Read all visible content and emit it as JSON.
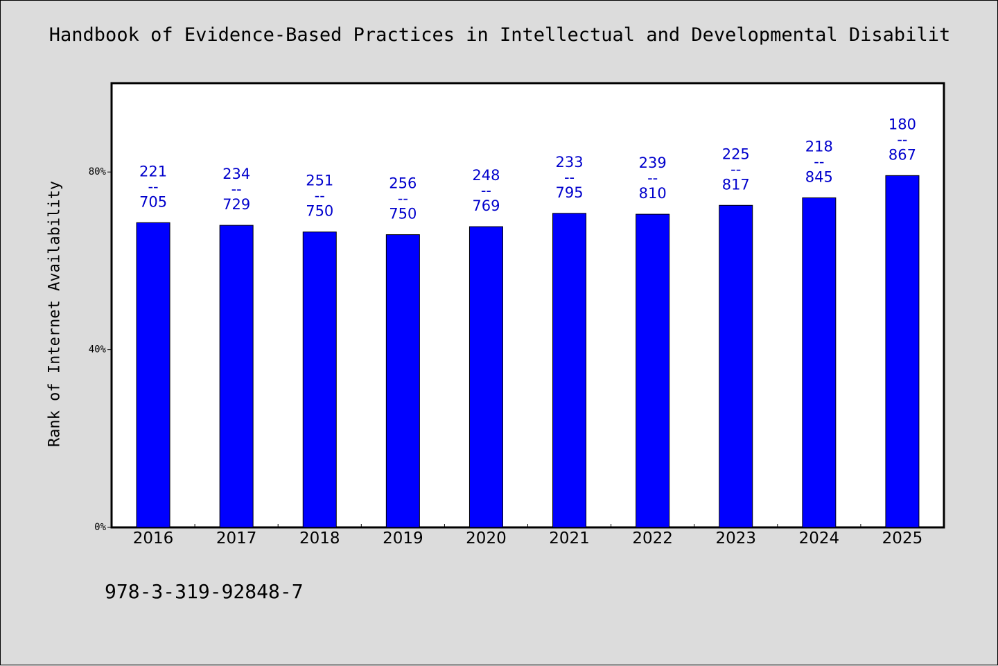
{
  "chart_data": {
    "type": "bar",
    "title": "Handbook of Evidence-Based Practices in Intellectual and Developmental Disabilit",
    "xlabel": "",
    "ylabel": "Rank of Internet Availability",
    "categories": [
      "2016",
      "2017",
      "2018",
      "2019",
      "2020",
      "2021",
      "2022",
      "2023",
      "2024",
      "2025"
    ],
    "values": [
      68.6,
      68.0,
      66.5,
      65.9,
      67.7,
      70.7,
      70.5,
      72.5,
      74.2,
      79.2
    ],
    "bar_labels": [
      {
        "top": "221",
        "sep": "--",
        "bottom": "705"
      },
      {
        "top": "234",
        "sep": "--",
        "bottom": "729"
      },
      {
        "top": "251",
        "sep": "--",
        "bottom": "750"
      },
      {
        "top": "256",
        "sep": "--",
        "bottom": "750"
      },
      {
        "top": "248",
        "sep": "--",
        "bottom": "769"
      },
      {
        "top": "233",
        "sep": "--",
        "bottom": "795"
      },
      {
        "top": "239",
        "sep": "--",
        "bottom": "810"
      },
      {
        "top": "225",
        "sep": "--",
        "bottom": "817"
      },
      {
        "top": "218",
        "sep": "--",
        "bottom": "845"
      },
      {
        "top": "180",
        "sep": "--",
        "bottom": "867"
      }
    ],
    "ylim": [
      0,
      100
    ],
    "yticks": [
      0,
      40,
      80
    ],
    "ytick_labels": [
      "0%",
      "40%",
      "80%"
    ],
    "grid": false,
    "bar_color": "#0000ff",
    "label_color": "#0000cc"
  },
  "footer": {
    "isbn": "978-3-319-92848-7"
  }
}
